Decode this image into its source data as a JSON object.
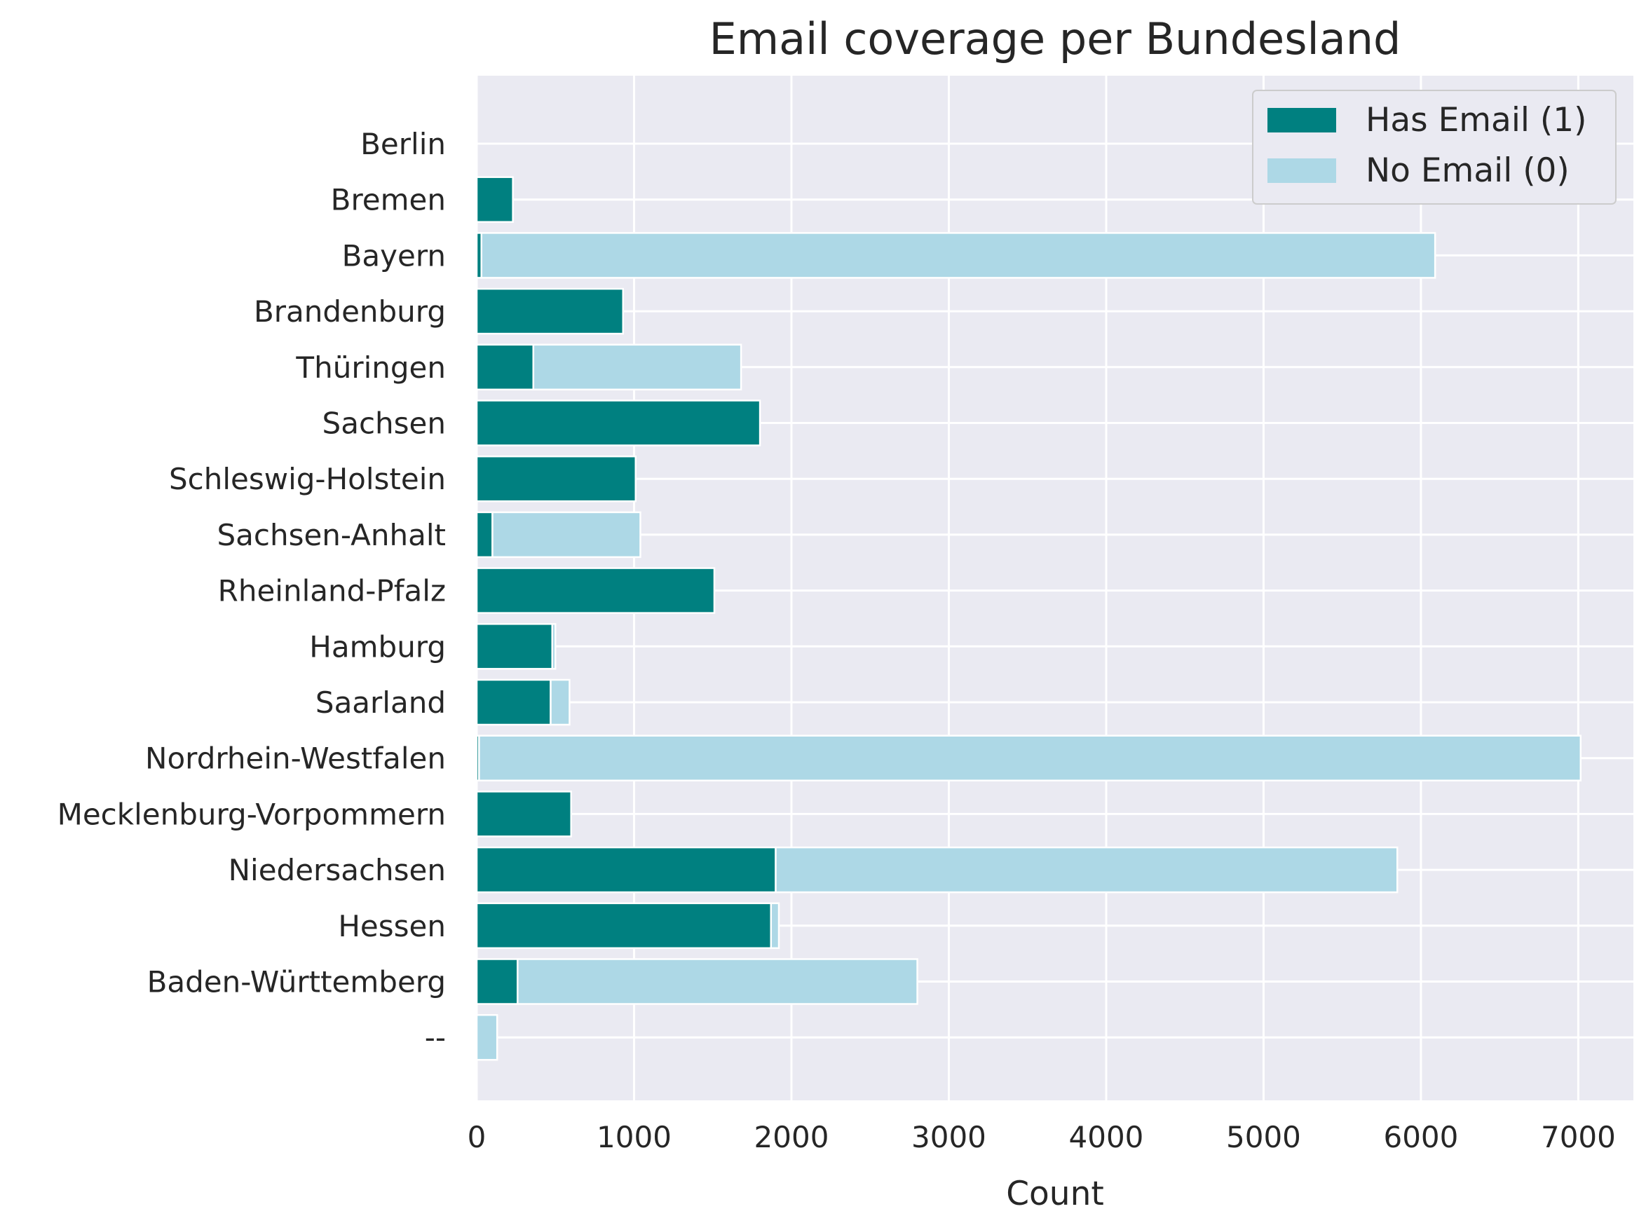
{
  "chart_data": {
    "type": "bar",
    "orientation": "horizontal",
    "stacked": true,
    "title": "Email coverage per Bundesland",
    "xlabel": "Count",
    "ylabel": "",
    "xlim": [
      0,
      7350
    ],
    "xticks": [
      0,
      1000,
      2000,
      3000,
      4000,
      5000,
      6000,
      7000
    ],
    "xtick_labels": [
      "0",
      "1000",
      "2000",
      "3000",
      "4000",
      "5000",
      "6000",
      "7000"
    ],
    "grid": true,
    "legend_position": "top-right",
    "categories": [
      "Berlin",
      "Bremen",
      "Bayern",
      "Brandenburg",
      "Thüringen",
      "Sachsen",
      "Schleswig-Holstein",
      "Sachsen-Anhalt",
      "Rheinland-Pfalz",
      "Hamburg",
      "Saarland",
      "Nordrhein-Westfalen",
      "Mecklenburg-Vorpommern",
      "Niedersachsen",
      "Hessen",
      "Baden-Württemberg",
      "--"
    ],
    "series": [
      {
        "name": "Has Email (1)",
        "color": "#008080",
        "values": [
          0,
          230,
          30,
          930,
          360,
          1800,
          1010,
          100,
          1510,
          480,
          470,
          15,
          600,
          1900,
          1870,
          260,
          0
        ]
      },
      {
        "name": "No Email (0)",
        "color": "#add8e6",
        "values": [
          0,
          0,
          6060,
          0,
          1320,
          0,
          0,
          940,
          0,
          20,
          120,
          7000,
          0,
          3950,
          50,
          2540,
          130
        ]
      }
    ]
  }
}
